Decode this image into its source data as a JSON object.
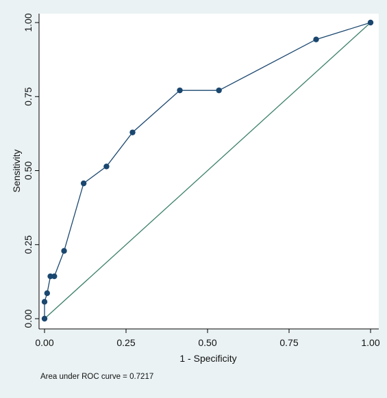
{
  "chart_data": {
    "type": "line",
    "xlabel": "1 - Specificity",
    "ylabel": "Sensitivity",
    "xlim": [
      0,
      1
    ],
    "ylim": [
      0,
      1
    ],
    "x_ticks": [
      "0.00",
      "0.25",
      "0.50",
      "0.75",
      "1.00"
    ],
    "y_ticks": [
      "0.00",
      "0.25",
      "0.50",
      "0.75",
      "1.00"
    ],
    "grid": false,
    "series": [
      {
        "x": [
          0.0,
          0.0,
          0.008,
          0.018,
          0.03,
          0.06,
          0.12,
          0.19,
          0.27,
          0.415,
          0.535,
          0.833,
          1.0
        ],
        "y": [
          0.0,
          0.057,
          0.086,
          0.143,
          0.143,
          0.229,
          0.457,
          0.514,
          0.629,
          0.771,
          0.771,
          0.943,
          1.0
        ],
        "color": "#1a476f"
      },
      {
        "x": [
          0,
          1
        ],
        "y": [
          0,
          1
        ],
        "color": "#3a7f6a"
      }
    ],
    "note": "Area under ROC curve = 0.7217"
  }
}
